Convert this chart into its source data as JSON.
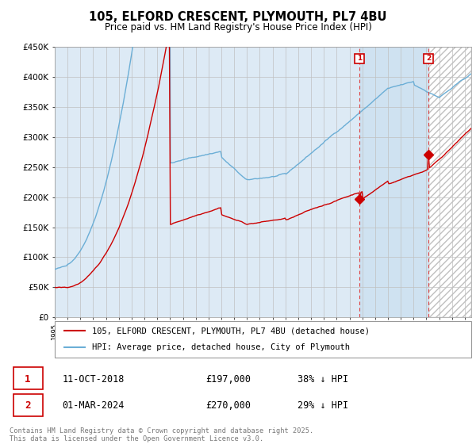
{
  "title": "105, ELFORD CRESCENT, PLYMOUTH, PL7 4BU",
  "subtitle": "Price paid vs. HM Land Registry's House Price Index (HPI)",
  "ylabel_ticks": [
    "£0",
    "£50K",
    "£100K",
    "£150K",
    "£200K",
    "£250K",
    "£300K",
    "£350K",
    "£400K",
    "£450K"
  ],
  "ylim": [
    0,
    450000
  ],
  "xlim_start": 1995.0,
  "xlim_end": 2027.5,
  "marker1_x": 2018.78,
  "marker1_y": 197000,
  "marker2_x": 2024.17,
  "marker2_y": 270000,
  "annotation1": [
    "1",
    "11-OCT-2018",
    "£197,000",
    "38% ↓ HPI"
  ],
  "annotation2": [
    "2",
    "01-MAR-2024",
    "£270,000",
    "29% ↓ HPI"
  ],
  "legend1": "105, ELFORD CRESCENT, PLYMOUTH, PL7 4BU (detached house)",
  "legend2": "HPI: Average price, detached house, City of Plymouth",
  "footer": "Contains HM Land Registry data © Crown copyright and database right 2025.\nThis data is licensed under the Open Government Licence v3.0.",
  "hpi_color": "#6baed6",
  "price_color": "#cc0000",
  "bg_color": "#ddeaf5",
  "plot_bg": "#ffffff",
  "grid_color": "#c0c0c0",
  "vline_color": "#dd4444"
}
